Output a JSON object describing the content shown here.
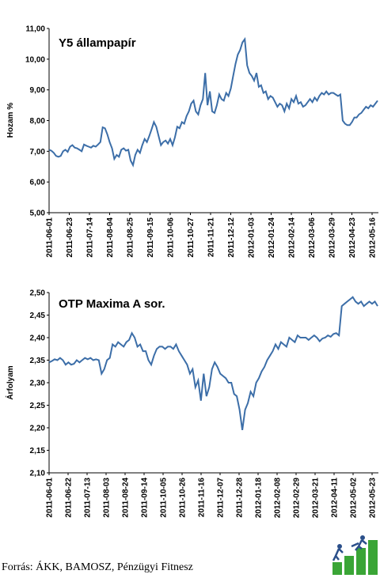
{
  "source_text": "Forrás: ÁKK, BAMOSZ, Pénzügyi Fitnesz",
  "colors": {
    "line": "#3c6ea8",
    "logo_green": "#3aa536",
    "logo_blue": "#2b4f8a"
  },
  "chart_data": [
    {
      "type": "line",
      "title": "Y5  állampapír",
      "ylabel": "Hozam %",
      "ylim": [
        5,
        11
      ],
      "yticks": [
        "5,00",
        "6,00",
        "7,00",
        "8,00",
        "9,00",
        "10,00",
        "11,00"
      ],
      "xticks": [
        "2011-06-01",
        "2011-06-23",
        "2011-07-14",
        "2011-08-04",
        "2011-08-25",
        "2011-09-15",
        "2011-10-06",
        "2011-10-27",
        "2011-11-21",
        "2011-12-12",
        "2012-01-03",
        "2012-01-24",
        "2012-02-14",
        "2012-03-06",
        "2012-03-29",
        "2012-04-23",
        "2012-05-16"
      ],
      "series": [
        {
          "values": [
            7.05,
            7.02,
            6.95,
            6.85,
            6.82,
            6.85,
            7.0,
            7.05,
            6.98,
            7.15,
            7.2,
            7.12,
            7.1,
            7.05,
            7.0,
            7.22,
            7.18,
            7.15,
            7.12,
            7.18,
            7.15,
            7.22,
            7.3,
            7.78,
            7.75,
            7.55,
            7.3,
            7.1,
            6.75,
            6.88,
            6.82,
            7.05,
            7.1,
            7.02,
            7.05,
            6.7,
            6.55,
            6.88,
            7.05,
            6.95,
            7.2,
            7.4,
            7.3,
            7.5,
            7.72,
            7.95,
            7.8,
            7.5,
            7.2,
            7.3,
            7.35,
            7.25,
            7.4,
            7.2,
            7.45,
            7.8,
            7.75,
            7.95,
            7.9,
            8.15,
            8.3,
            8.55,
            8.65,
            8.3,
            8.2,
            8.5,
            8.7,
            9.55,
            8.5,
            8.95,
            8.3,
            8.25,
            8.5,
            8.85,
            8.7,
            8.65,
            8.9,
            8.8,
            9.05,
            9.45,
            9.85,
            10.15,
            10.3,
            10.55,
            10.65,
            9.8,
            9.55,
            9.45,
            9.3,
            9.55,
            9.1,
            9.15,
            8.9,
            8.95,
            8.7,
            8.8,
            8.75,
            8.6,
            8.45,
            8.55,
            8.5,
            8.3,
            8.55,
            8.4,
            8.7,
            8.6,
            8.8,
            8.55,
            8.6,
            8.45,
            8.5,
            8.6,
            8.7,
            8.6,
            8.75,
            8.65,
            8.8,
            8.9,
            8.85,
            8.95,
            8.85,
            8.9,
            8.9,
            8.85,
            8.8,
            8.85,
            8.0,
            7.9,
            7.85,
            7.85,
            7.95,
            8.1,
            8.1,
            8.2,
            8.25,
            8.35,
            8.45,
            8.4,
            8.5,
            8.45,
            8.55,
            8.65
          ]
        }
      ]
    },
    {
      "type": "line",
      "title": "OTP Maxima A sor.",
      "ylabel": "Árfolyam",
      "ylim": [
        2.1,
        2.5
      ],
      "yticks": [
        "2,10",
        "2,15",
        "2,20",
        "2,25",
        "2,30",
        "2,35",
        "2,40",
        "2,45",
        "2,50"
      ],
      "xticks": [
        "2011-06-01",
        "2011-06-22",
        "2011-07-13",
        "2011-08-03",
        "2011-08-24",
        "2011-09-14",
        "2011-10-05",
        "2011-10-26",
        "2011-11-16",
        "2011-12-07",
        "2011-12-28",
        "2012-01-18",
        "2012-02-08",
        "2012-02-29",
        "2012-03-21",
        "2012-04-11",
        "2012-05-02",
        "2012-05-23"
      ],
      "series": [
        {
          "values": [
            2.345,
            2.348,
            2.352,
            2.35,
            2.355,
            2.35,
            2.34,
            2.345,
            2.34,
            2.342,
            2.35,
            2.345,
            2.35,
            2.355,
            2.352,
            2.355,
            2.35,
            2.352,
            2.35,
            2.32,
            2.33,
            2.35,
            2.355,
            2.385,
            2.38,
            2.39,
            2.385,
            2.38,
            2.39,
            2.395,
            2.41,
            2.4,
            2.38,
            2.385,
            2.37,
            2.37,
            2.35,
            2.34,
            2.36,
            2.375,
            2.38,
            2.38,
            2.375,
            2.38,
            2.38,
            2.375,
            2.385,
            2.37,
            2.36,
            2.35,
            2.34,
            2.32,
            2.33,
            2.29,
            2.305,
            2.26,
            2.32,
            2.27,
            2.29,
            2.33,
            2.345,
            2.335,
            2.32,
            2.315,
            2.31,
            2.3,
            2.3,
            2.275,
            2.27,
            2.24,
            2.195,
            2.24,
            2.255,
            2.28,
            2.27,
            2.3,
            2.31,
            2.325,
            2.335,
            2.35,
            2.36,
            2.37,
            2.385,
            2.375,
            2.39,
            2.385,
            2.38,
            2.4,
            2.395,
            2.39,
            2.405,
            2.4,
            2.4,
            2.4,
            2.395,
            2.4,
            2.405,
            2.4,
            2.392,
            2.398,
            2.4,
            2.405,
            2.402,
            2.408,
            2.41,
            2.405,
            2.47,
            2.475,
            2.48,
            2.485,
            2.49,
            2.48,
            2.475,
            2.48,
            2.47,
            2.475,
            2.48,
            2.475,
            2.48,
            2.47
          ]
        }
      ]
    }
  ]
}
